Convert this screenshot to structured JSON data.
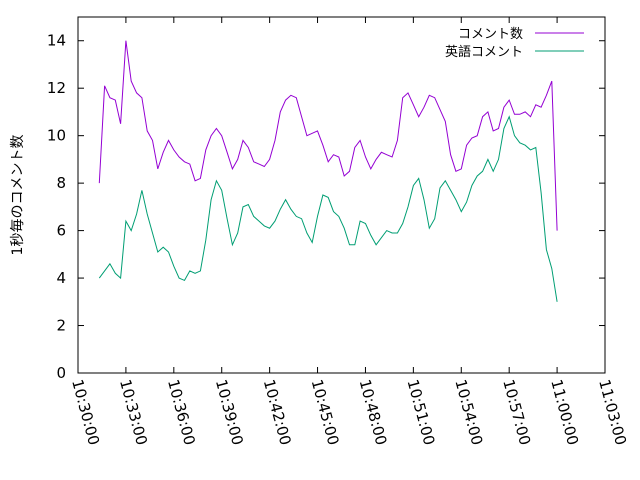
{
  "chart_data": {
    "type": "line",
    "title": "",
    "xlabel": "",
    "ylabel": "1秒毎のコメント数",
    "xlim": [
      "10:30:00",
      "11:03:00"
    ],
    "ylim": [
      0,
      15
    ],
    "grid": false,
    "legend_position": "top-right",
    "x_ticks": [
      "10:30:00",
      "10:33:00",
      "10:36:00",
      "10:39:00",
      "10:42:00",
      "10:45:00",
      "10:48:00",
      "10:51:00",
      "10:54:00",
      "10:57:00",
      "11:00:00",
      "11:03:00"
    ],
    "y_ticks": [
      0,
      2,
      4,
      6,
      8,
      10,
      12,
      14
    ],
    "x": [
      "10:31:20",
      "10:31:40",
      "10:32:00",
      "10:32:20",
      "10:32:40",
      "10:33:00",
      "10:33:20",
      "10:33:40",
      "10:34:00",
      "10:34:20",
      "10:34:40",
      "10:35:00",
      "10:35:20",
      "10:35:40",
      "10:36:00",
      "10:36:20",
      "10:36:40",
      "10:37:00",
      "10:37:20",
      "10:37:40",
      "10:38:00",
      "10:38:20",
      "10:38:40",
      "10:39:00",
      "10:39:20",
      "10:39:40",
      "10:40:00",
      "10:40:20",
      "10:40:40",
      "10:41:00",
      "10:41:20",
      "10:41:40",
      "10:42:00",
      "10:42:20",
      "10:42:40",
      "10:43:00",
      "10:43:20",
      "10:43:40",
      "10:44:00",
      "10:44:20",
      "10:44:40",
      "10:45:00",
      "10:45:20",
      "10:45:40",
      "10:46:00",
      "10:46:20",
      "10:46:40",
      "10:47:00",
      "10:47:20",
      "10:47:40",
      "10:48:00",
      "10:48:20",
      "10:48:40",
      "10:49:00",
      "10:49:20",
      "10:49:40",
      "10:50:00",
      "10:50:20",
      "10:50:40",
      "10:51:00",
      "10:51:20",
      "10:51:40",
      "10:52:00",
      "10:52:20",
      "10:52:40",
      "10:53:00",
      "10:53:20",
      "10:53:40",
      "10:54:00",
      "10:54:20",
      "10:54:40",
      "10:55:00",
      "10:55:20",
      "10:55:40",
      "10:56:00",
      "10:56:20",
      "10:56:40",
      "10:57:00",
      "10:57:20",
      "10:57:40",
      "10:58:00",
      "10:58:20",
      "10:58:40",
      "10:59:00",
      "10:59:20",
      "10:59:40",
      "11:00:00"
    ],
    "series": [
      {
        "name": "コメント数",
        "color": "#9400d3",
        "values": [
          8.0,
          12.1,
          11.6,
          11.5,
          10.5,
          14.0,
          12.3,
          11.8,
          11.6,
          10.2,
          9.8,
          8.6,
          9.3,
          9.8,
          9.4,
          9.1,
          8.9,
          8.8,
          8.1,
          8.2,
          9.4,
          10.0,
          10.3,
          10.0,
          9.3,
          8.6,
          9.0,
          9.8,
          9.5,
          8.9,
          8.8,
          8.7,
          9.0,
          9.8,
          11.0,
          11.5,
          11.7,
          11.6,
          10.8,
          10.0,
          10.1,
          10.2,
          9.6,
          8.9,
          9.2,
          9.1,
          8.3,
          8.5,
          9.5,
          9.8,
          9.1,
          8.6,
          9.0,
          9.3,
          9.2,
          9.1,
          9.8,
          11.6,
          11.8,
          11.3,
          10.8,
          11.2,
          11.7,
          11.6,
          11.1,
          10.6,
          9.2,
          8.5,
          8.6,
          9.6,
          9.9,
          10.0,
          10.8,
          11.0,
          10.2,
          10.3,
          11.2,
          11.5,
          10.9,
          10.9,
          11.0,
          10.8,
          11.3,
          11.2,
          11.7,
          12.3,
          6.0
        ]
      },
      {
        "name": "英語コメント",
        "color": "#009e73",
        "values": [
          4.0,
          4.3,
          4.6,
          4.2,
          4.0,
          6.4,
          6.0,
          6.7,
          7.7,
          6.7,
          5.9,
          5.1,
          5.3,
          5.1,
          4.5,
          4.0,
          3.9,
          4.3,
          4.2,
          4.3,
          5.6,
          7.3,
          8.1,
          7.7,
          6.5,
          5.4,
          5.9,
          7.0,
          7.1,
          6.6,
          6.4,
          6.2,
          6.1,
          6.4,
          6.9,
          7.3,
          6.9,
          6.6,
          6.5,
          5.9,
          5.5,
          6.6,
          7.5,
          7.4,
          6.8,
          6.6,
          6.1,
          5.4,
          5.4,
          6.4,
          6.3,
          5.8,
          5.4,
          5.7,
          6.0,
          5.9,
          5.9,
          6.3,
          7.0,
          7.9,
          8.2,
          7.3,
          6.1,
          6.5,
          7.8,
          8.1,
          7.7,
          7.3,
          6.8,
          7.2,
          7.9,
          8.3,
          8.5,
          9.0,
          8.5,
          9.0,
          10.3,
          10.8,
          10.0,
          9.7,
          9.6,
          9.4,
          9.5,
          7.6,
          5.2,
          4.4,
          3.0
        ]
      }
    ]
  }
}
